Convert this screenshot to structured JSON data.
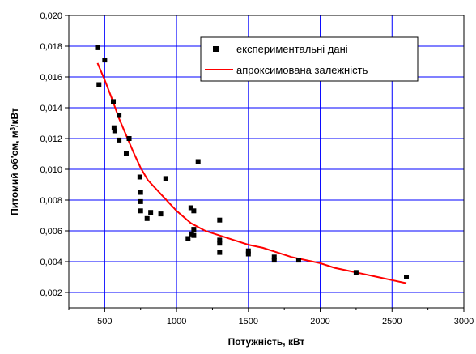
{
  "chart_data": {
    "type": "scatter",
    "xlabel": "Потужність, кВт",
    "ylabel_prefix": "Питомий об'єм, м",
    "ylabel_sup": "3",
    "ylabel_suffix": "/кВт",
    "xlim": [
      250,
      3000
    ],
    "ylim": [
      0.001,
      0.02
    ],
    "x_ticks": [
      500,
      1000,
      1500,
      2000,
      2500,
      3000
    ],
    "x_tick_labels": [
      "500",
      "1000",
      "1500",
      "2000",
      "2500",
      "3000"
    ],
    "y_ticks": [
      0.002,
      0.004,
      0.006,
      0.008,
      0.01,
      0.012,
      0.014,
      0.016,
      0.018,
      0.02
    ],
    "y_tick_labels": [
      "0,002",
      "0,004",
      "0,006",
      "0,008",
      "0,010",
      "0,012",
      "0,014",
      "0,016",
      "0,018",
      "0,020"
    ],
    "grid": true,
    "legend_position": "top-right",
    "series": [
      {
        "name": "експериментальні дані",
        "kind": "markers",
        "color": "#000000",
        "points": [
          [
            450,
            0.0179
          ],
          [
            460,
            0.0155
          ],
          [
            500,
            0.0171
          ],
          [
            560,
            0.0144
          ],
          [
            565,
            0.0127
          ],
          [
            570,
            0.0125
          ],
          [
            600,
            0.0135
          ],
          [
            600,
            0.0119
          ],
          [
            650,
            0.011
          ],
          [
            670,
            0.012
          ],
          [
            745,
            0.0095
          ],
          [
            750,
            0.0085
          ],
          [
            750,
            0.0079
          ],
          [
            750,
            0.0073
          ],
          [
            795,
            0.0068
          ],
          [
            820,
            0.0072
          ],
          [
            890,
            0.0071
          ],
          [
            925,
            0.0094
          ],
          [
            1080,
            0.0055
          ],
          [
            1100,
            0.0075
          ],
          [
            1105,
            0.0058
          ],
          [
            1120,
            0.0073
          ],
          [
            1120,
            0.0061
          ],
          [
            1120,
            0.0057
          ],
          [
            1150,
            0.0105
          ],
          [
            1300,
            0.0067
          ],
          [
            1300,
            0.0054
          ],
          [
            1300,
            0.0052
          ],
          [
            1300,
            0.0046
          ],
          [
            1500,
            0.0047
          ],
          [
            1500,
            0.0045
          ],
          [
            1680,
            0.0043
          ],
          [
            1680,
            0.0041
          ],
          [
            1850,
            0.0041
          ],
          [
            2250,
            0.0033
          ],
          [
            2600,
            0.003
          ]
        ]
      },
      {
        "name": "апроксимована залежність",
        "kind": "line",
        "color": "#ff0000",
        "points": [
          [
            450,
            0.0169
          ],
          [
            500,
            0.0158
          ],
          [
            550,
            0.0146
          ],
          [
            600,
            0.0133
          ],
          [
            650,
            0.0122
          ],
          [
            700,
            0.0111
          ],
          [
            750,
            0.0101
          ],
          [
            800,
            0.0093
          ],
          [
            900,
            0.0083
          ],
          [
            1000,
            0.0073
          ],
          [
            1100,
            0.0065
          ],
          [
            1200,
            0.006
          ],
          [
            1300,
            0.0057
          ],
          [
            1400,
            0.0054
          ],
          [
            1500,
            0.0051
          ],
          [
            1600,
            0.0049
          ],
          [
            1700,
            0.0046
          ],
          [
            1800,
            0.0043
          ],
          [
            1900,
            0.0041
          ],
          [
            2000,
            0.0039
          ],
          [
            2100,
            0.0036
          ],
          [
            2200,
            0.0034
          ],
          [
            2300,
            0.0032
          ],
          [
            2400,
            0.003
          ],
          [
            2500,
            0.0028
          ],
          [
            2600,
            0.0026
          ]
        ]
      }
    ]
  }
}
